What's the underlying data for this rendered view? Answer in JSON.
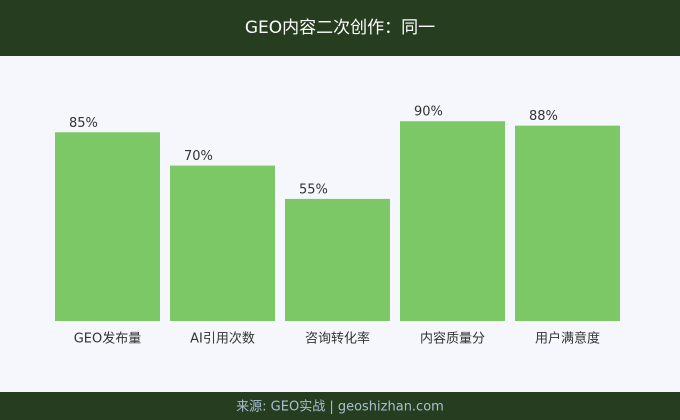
{
  "chart_data": {
    "type": "bar",
    "title": "GEO内容二次创作：同一",
    "categories": [
      "GEO发布量",
      "AI引用次数",
      "咨询转化率",
      "内容质量分",
      "用户满意度"
    ],
    "values": [
      85,
      70,
      55,
      90,
      88
    ],
    "value_labels": [
      "85%",
      "70%",
      "55%",
      "90%",
      "88%"
    ],
    "color": "#7cc866",
    "ylim": [
      0,
      100
    ],
    "source": "来源: GEO实战 | geoshizhan.com"
  }
}
